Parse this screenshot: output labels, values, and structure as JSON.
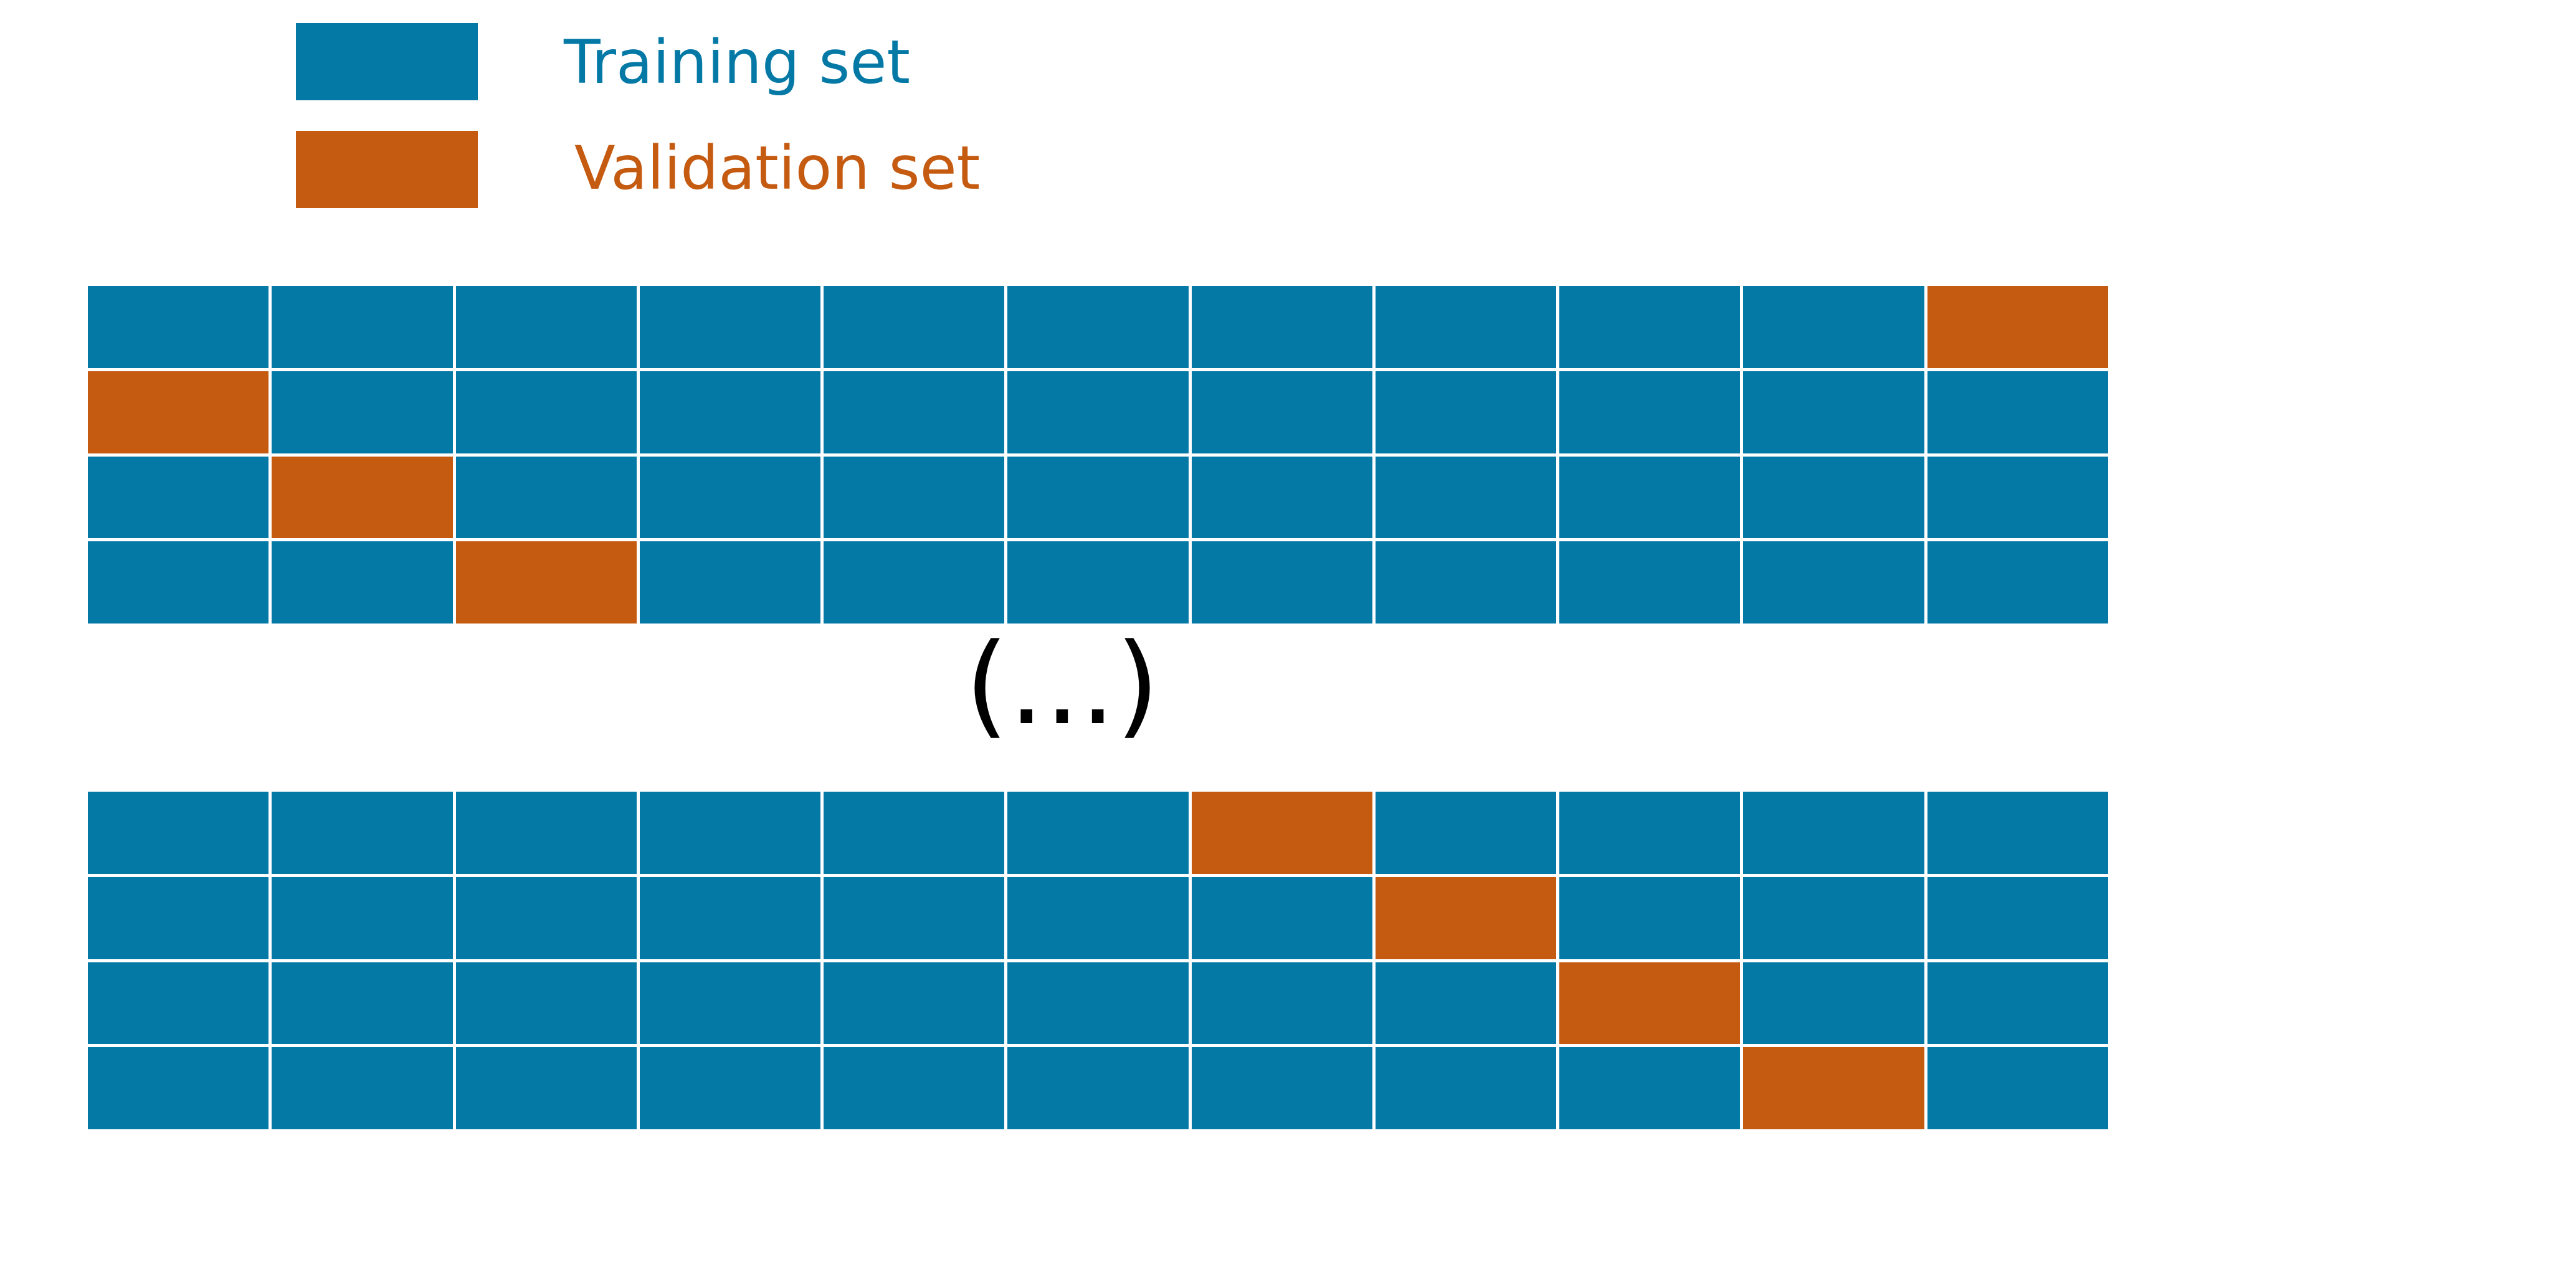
{
  "colors": {
    "training": "#0479A6",
    "validation": "#C55A11",
    "background": "#FFFFFF",
    "text": "#000000"
  },
  "legend": {
    "training_label": "Training set",
    "validation_label": "Validation set"
  },
  "ellipsis": "(...)",
  "grid_top": {
    "columns": 11,
    "rows": [
      {
        "validation_index": 10
      },
      {
        "validation_index": 0
      },
      {
        "validation_index": 1
      },
      {
        "validation_index": 2
      }
    ]
  },
  "grid_bottom": {
    "columns": 11,
    "rows": [
      {
        "validation_index": 6
      },
      {
        "validation_index": 7
      },
      {
        "validation_index": 8
      },
      {
        "validation_index": 9
      }
    ]
  }
}
